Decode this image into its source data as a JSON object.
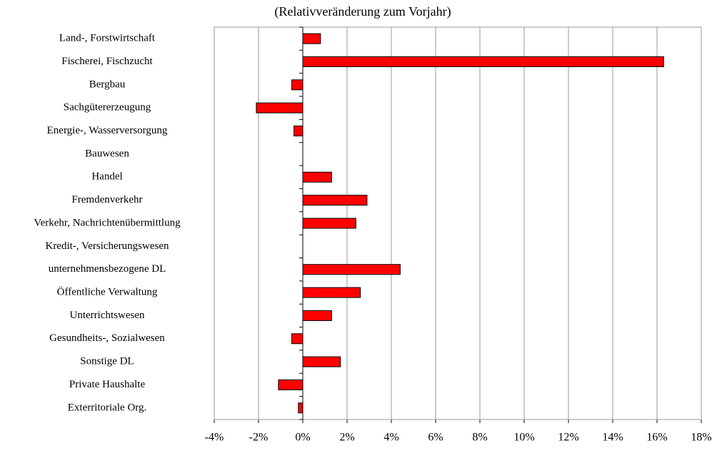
{
  "chart_data": {
    "type": "hbar",
    "title": "(Relativveränderung zum Vorjahr)",
    "categories": [
      "Land-, Forstwirtschaft",
      "Fischerei, Fischzucht",
      "Bergbau",
      "Sachgütererzeugung",
      "Energie-, Wasserversorgung",
      "Bauwesen",
      "Handel",
      "Fremdenverkehr",
      "Verkehr, Nachrichtenübermittlung",
      "Kredit-, Versicherungswesen",
      "unternehmensbezogene DL",
      "Öffentliche Verwaltung",
      "Unterrichtswesen",
      "Gesundheits-, Sozialwesen",
      "Sonstige DL",
      "Private Haushalte",
      "Exterritoriale Org."
    ],
    "values": [
      0.8,
      16.3,
      -0.5,
      -2.1,
      -0.4,
      0,
      1.3,
      2.9,
      2.4,
      0,
      4.4,
      2.6,
      1.3,
      -0.5,
      1.7,
      -1.1,
      -0.2
    ],
    "color": "#ff0000",
    "xlim": [
      -4,
      18
    ],
    "xticks": [
      {
        "value": -4,
        "label": "-4%"
      },
      {
        "value": -2,
        "label": "-2%"
      },
      {
        "value": 0,
        "label": "0%"
      },
      {
        "value": 2,
        "label": "2%"
      },
      {
        "value": 4,
        "label": "4%"
      },
      {
        "value": 6,
        "label": "6%"
      },
      {
        "value": 8,
        "label": "8%"
      },
      {
        "value": 10,
        "label": "10%"
      },
      {
        "value": 12,
        "label": "12%"
      },
      {
        "value": 14,
        "label": "14%"
      },
      {
        "value": 16,
        "label": "16%"
      },
      {
        "value": 18,
        "label": "18%"
      }
    ],
    "grid": true
  }
}
